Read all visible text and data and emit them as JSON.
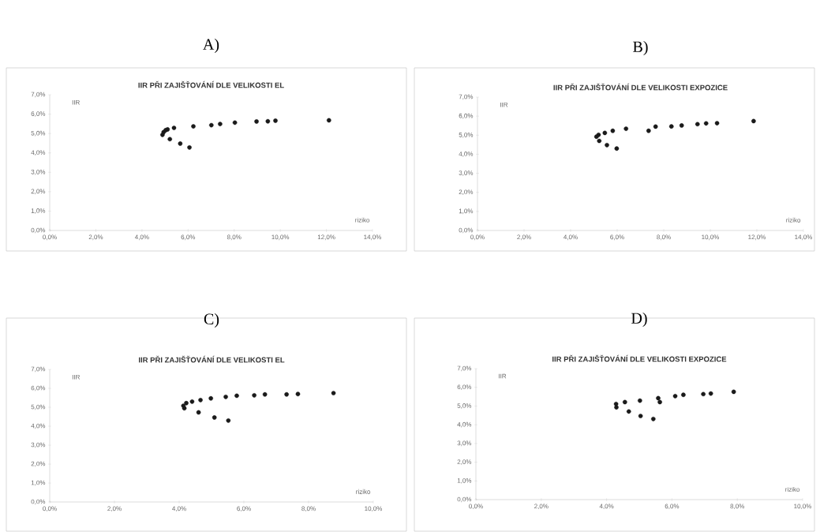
{
  "chart_data": [
    {
      "type": "scatter",
      "title": "A)",
      "subtitle": "IIR PŘI ZAJIŠŤOVÁNÍ DLE VELIKOSTI EL",
      "xlabel": "riziko",
      "ylabel": "IIR",
      "marker": "circle",
      "color": "#1a1a1a",
      "x": [
        4.89,
        4.94,
        5.03,
        5.11,
        5.21,
        5.39,
        5.66,
        6.06,
        6.23,
        7.01,
        7.39,
        8.03,
        8.97,
        9.46,
        9.79,
        12.11
      ],
      "values": [
        4.93,
        5.07,
        5.17,
        5.21,
        4.71,
        5.29,
        4.48,
        4.28,
        5.37,
        5.43,
        5.49,
        5.56,
        5.62,
        5.63,
        5.66,
        5.68
      ],
      "xlim": [
        0,
        14
      ],
      "ylim": [
        0,
        7
      ],
      "xticks": [
        {
          "value": 0,
          "label": "0,0%"
        },
        {
          "value": 2,
          "label": "2,0%"
        },
        {
          "value": 4,
          "label": "4,0%"
        },
        {
          "value": 6,
          "label": "6,0%"
        },
        {
          "value": 8,
          "label": "8,0%"
        },
        {
          "value": 10,
          "label": "10,0%"
        },
        {
          "value": 12,
          "label": "12,0%"
        },
        {
          "value": 14,
          "label": "14,0%"
        }
      ],
      "yticks": [
        {
          "value": 0,
          "label": "0,0%"
        },
        {
          "value": 1,
          "label": "1,0%"
        },
        {
          "value": 2,
          "label": "2,0%"
        },
        {
          "value": 3,
          "label": "3,0%"
        },
        {
          "value": 4,
          "label": "4,0%"
        },
        {
          "value": 5,
          "label": "5,0%"
        },
        {
          "value": 6,
          "label": "6,0%"
        },
        {
          "value": 7,
          "label": "7,0%"
        }
      ]
    },
    {
      "type": "scatter",
      "title": "B)",
      "subtitle": "IIR PŘI ZAJIŠŤOVÁNÍ DLE VELIKOSTI EXPOZICE",
      "xlabel": "riziko",
      "ylabel": "IIR",
      "marker": "circle",
      "color": "#1a1a1a",
      "x": [
        5.11,
        5.2,
        5.23,
        5.47,
        5.56,
        5.81,
        5.98,
        6.38,
        7.35,
        7.65,
        8.33,
        8.77,
        9.45,
        9.82,
        10.29,
        11.86
      ],
      "values": [
        4.92,
        5.02,
        4.7,
        5.12,
        4.48,
        5.23,
        4.3,
        5.34,
        5.23,
        5.45,
        5.46,
        5.51,
        5.58,
        5.62,
        5.63,
        5.74
      ],
      "xlim": [
        0,
        14
      ],
      "ylim": [
        0,
        7
      ],
      "xticks": [
        {
          "value": 0,
          "label": "0,0%"
        },
        {
          "value": 2,
          "label": "2,0%"
        },
        {
          "value": 4,
          "label": "4,0%"
        },
        {
          "value": 6,
          "label": "6,0%"
        },
        {
          "value": 8,
          "label": "8,0%"
        },
        {
          "value": 10,
          "label": "10,0%"
        },
        {
          "value": 12,
          "label": "12,0%"
        },
        {
          "value": 14,
          "label": "14,0%"
        }
      ],
      "yticks": [
        {
          "value": 0,
          "label": "0,0%"
        },
        {
          "value": 1,
          "label": "1,0%"
        },
        {
          "value": 2,
          "label": "2,0%"
        },
        {
          "value": 3,
          "label": "3,0%"
        },
        {
          "value": 4,
          "label": "4,0%"
        },
        {
          "value": 5,
          "label": "5,0%"
        },
        {
          "value": 6,
          "label": "6,0%"
        },
        {
          "value": 7,
          "label": "7,0%"
        }
      ]
    },
    {
      "type": "scatter",
      "title": "C)",
      "subtitle": "IIR PŘI ZAJIŠŤOVÁNÍ DLE VELIKOSTI EL",
      "xlabel": "riziko",
      "ylabel": "IIR",
      "marker": "circle",
      "color": "#1a1a1a",
      "x": [
        4.13,
        4.16,
        4.22,
        4.4,
        4.6,
        4.66,
        4.98,
        5.09,
        5.44,
        5.52,
        5.78,
        6.32,
        6.65,
        7.32,
        7.67,
        8.77
      ],
      "values": [
        5.08,
        4.95,
        5.22,
        5.3,
        4.73,
        5.38,
        5.47,
        4.46,
        5.55,
        4.3,
        5.61,
        5.63,
        5.68,
        5.68,
        5.7,
        5.75
      ],
      "xlim": [
        0,
        10
      ],
      "ylim": [
        0,
        7
      ],
      "xticks": [
        {
          "value": 0,
          "label": "0,0%"
        },
        {
          "value": 2,
          "label": "2,0%"
        },
        {
          "value": 4,
          "label": "4,0%"
        },
        {
          "value": 6,
          "label": "6,0%"
        },
        {
          "value": 8,
          "label": "8,0%"
        },
        {
          "value": 10,
          "label": "10,0%"
        }
      ],
      "yticks": [
        {
          "value": 0,
          "label": "0,0%"
        },
        {
          "value": 1,
          "label": "1,0%"
        },
        {
          "value": 2,
          "label": "2,0%"
        },
        {
          "value": 3,
          "label": "3,0%"
        },
        {
          "value": 4,
          "label": "4,0%"
        },
        {
          "value": 5,
          "label": "5,0%"
        },
        {
          "value": 6,
          "label": "6,0%"
        },
        {
          "value": 7,
          "label": "7,0%"
        }
      ]
    },
    {
      "type": "scatter",
      "title": "D)",
      "subtitle": "IIR PŘI ZAJIŠŤOVÁNÍ DLE VELIKOSTI EXPOZICE",
      "xlabel": "riziko",
      "ylabel": "IIR",
      "marker": "circle",
      "color": "#1a1a1a",
      "x": [
        4.29,
        4.3,
        4.56,
        4.68,
        5.02,
        5.04,
        5.43,
        5.58,
        5.63,
        6.1,
        6.35,
        6.96,
        7.19,
        7.89
      ],
      "values": [
        5.11,
        4.93,
        5.21,
        4.71,
        5.29,
        4.47,
        4.31,
        5.42,
        5.21,
        5.53,
        5.6,
        5.64,
        5.67,
        5.76
      ],
      "xlim": [
        0,
        10
      ],
      "ylim": [
        0,
        7
      ],
      "xticks": [
        {
          "value": 0,
          "label": "0,0%"
        },
        {
          "value": 2,
          "label": "2,0%"
        },
        {
          "value": 4,
          "label": "4,0%"
        },
        {
          "value": 6,
          "label": "6,0%"
        },
        {
          "value": 8,
          "label": "8,0%"
        },
        {
          "value": 10,
          "label": "10,0%"
        }
      ],
      "yticks": [
        {
          "value": 0,
          "label": "0,0%"
        },
        {
          "value": 1,
          "label": "1,0%"
        },
        {
          "value": 2,
          "label": "2,0%"
        },
        {
          "value": 3,
          "label": "3,0%"
        },
        {
          "value": 4,
          "label": "4,0%"
        },
        {
          "value": 5,
          "label": "5,0%"
        },
        {
          "value": 6,
          "label": "6,0%"
        },
        {
          "value": 7,
          "label": "7,0%"
        }
      ]
    }
  ]
}
